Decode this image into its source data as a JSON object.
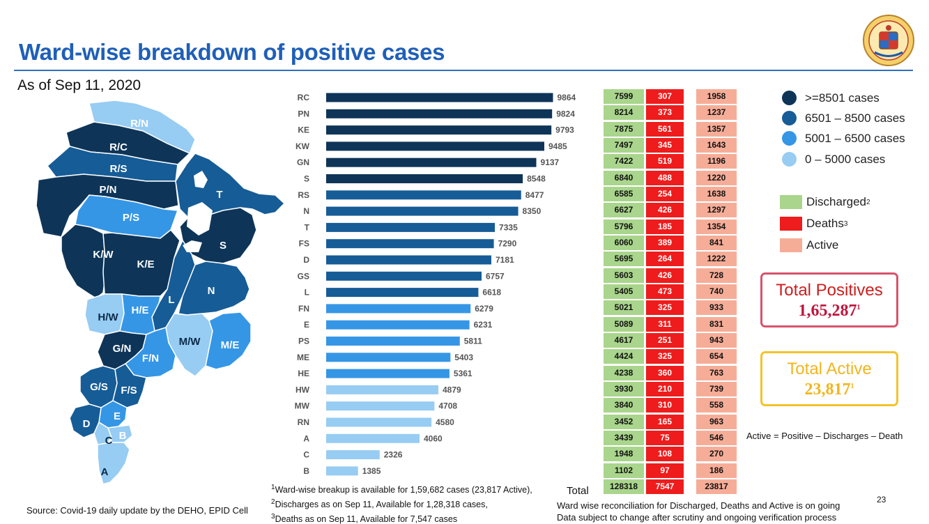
{
  "header": {
    "title": "Ward-wise breakdown of positive cases",
    "subtitle": "As of Sep 11, 2020"
  },
  "colors": {
    "tier1": "#0e3558",
    "tier2": "#165c97",
    "tier3": "#3596e6",
    "tier4": "#97ccf3",
    "discharged": "#a9d58c",
    "deaths": "#ee1c1c",
    "active": "#f6ad98"
  },
  "map": {
    "labels": [
      "R/N",
      "R/C",
      "R/S",
      "P/N",
      "P/S",
      "T",
      "S",
      "K/W",
      "K/E",
      "L",
      "N",
      "H/W",
      "H/E",
      "M/W",
      "M/E",
      "G/N",
      "F/N",
      "G/S",
      "F/S",
      "E",
      "D",
      "C",
      "B",
      "A"
    ]
  },
  "chart_data": {
    "type": "bar",
    "orientation": "horizontal",
    "categories": [
      "RC",
      "PN",
      "KE",
      "KW",
      "GN",
      "S",
      "RS",
      "N",
      "T",
      "FS",
      "D",
      "GS",
      "L",
      "FN",
      "E",
      "PS",
      "ME",
      "HE",
      "HW",
      "MW",
      "RN",
      "A",
      "C",
      "B"
    ],
    "values": [
      9864,
      9824,
      9793,
      9485,
      9137,
      8548,
      8477,
      8350,
      7335,
      7290,
      7181,
      6757,
      6618,
      6279,
      6231,
      5811,
      5403,
      5361,
      4879,
      4708,
      4580,
      4060,
      2326,
      1385
    ],
    "xlim": [
      0,
      10000
    ],
    "grid": false,
    "legend": "right"
  },
  "table": {
    "discharged": [
      "7599",
      "8214",
      "7875",
      "7497",
      "7422",
      "6840",
      "6585",
      "6627",
      "5796",
      "6060",
      "5695",
      "5603",
      "5405",
      "5021",
      "5089",
      "4617",
      "4424",
      "4238",
      "3930",
      "3840",
      "3452",
      "3439",
      "1948",
      "1102"
    ],
    "deaths": [
      "307",
      "373",
      "561",
      "345",
      "519",
      "488",
      "254",
      "426",
      "185",
      "389",
      "264",
      "426",
      "473",
      "325",
      "311",
      "251",
      "325",
      "360",
      "210",
      "310",
      "165",
      "75",
      "108",
      "97"
    ],
    "active": [
      "1958",
      "1237",
      "1357",
      "1643",
      "1196",
      "1220",
      "1638",
      "1297",
      "1354",
      "841",
      "1222",
      "728",
      "740",
      "933",
      "831",
      "943",
      "654",
      "763",
      "739",
      "558",
      "963",
      "546",
      "270",
      "186"
    ],
    "total_label": "Total",
    "totals": {
      "discharged": "128318",
      "deaths": "7547",
      "active": "23817"
    }
  },
  "legend": {
    "tiers": [
      ">=8501 cases",
      "6501 – 8500 cases",
      "5001 – 6500 cases",
      "0 – 5000 cases"
    ],
    "series": [
      {
        "label": "Discharged",
        "sup": "2"
      },
      {
        "label": "Deaths",
        "sup": "3"
      },
      {
        "label": "Active",
        "sup": ""
      }
    ]
  },
  "summary": {
    "positives_label": "Total Positives",
    "positives_value": "1,65,287",
    "positives_sup": "1",
    "active_label": "Total Active",
    "active_value": "23,817",
    "active_sup": "1",
    "formula": "Active = Positive – Discharges – Death"
  },
  "footnotes": {
    "f1": "Ward-wise breakup is available for 1,59,682 cases (23,817 Active),",
    "f2": "Discharges as on Sep 11, Available for 1,28,318  cases,",
    "f3": "Deaths as on Sep 11, Available for 7,547 cases"
  },
  "source": "Source: Covid-19 daily update by the DEHO, EPID Cell",
  "reconciliation": {
    "line1": "Ward wise reconciliation for Discharged, Deaths and Active is on going",
    "line2": "Data subject to change after scrutiny and ongoing verification process"
  },
  "page_number": "23"
}
